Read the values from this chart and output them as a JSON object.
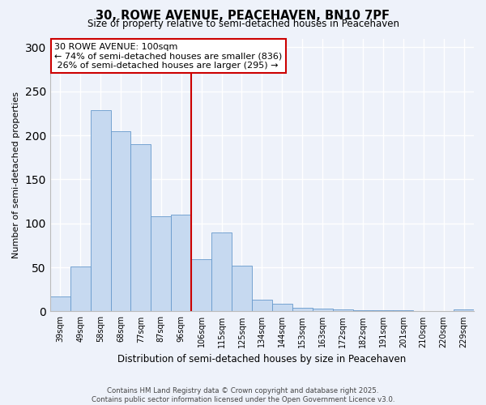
{
  "title": "30, ROWE AVENUE, PEACEHAVEN, BN10 7PF",
  "subtitle": "Size of property relative to semi-detached houses in Peacehaven",
  "xlabel": "Distribution of semi-detached houses by size in Peacehaven",
  "ylabel": "Number of semi-detached properties",
  "categories": [
    "39sqm",
    "49sqm",
    "58sqm",
    "68sqm",
    "77sqm",
    "87sqm",
    "96sqm",
    "106sqm",
    "115sqm",
    "125sqm",
    "134sqm",
    "144sqm",
    "153sqm",
    "163sqm",
    "172sqm",
    "182sqm",
    "191sqm",
    "201sqm",
    "210sqm",
    "220sqm",
    "229sqm"
  ],
  "values": [
    17,
    51,
    229,
    205,
    190,
    108,
    110,
    59,
    90,
    52,
    13,
    9,
    4,
    3,
    2,
    1,
    1,
    1,
    0,
    0,
    2
  ],
  "bar_color": "#c6d9f0",
  "bar_edge_color": "#6699cc",
  "property_line_x": 6.5,
  "pct_smaller": 74,
  "pct_smaller_n": 836,
  "pct_larger": 26,
  "pct_larger_n": 295,
  "vline_color": "#cc0000",
  "annotation_box_edge": "#cc0000",
  "ylim": [
    0,
    310
  ],
  "yticks": [
    0,
    50,
    100,
    150,
    200,
    250,
    300
  ],
  "footer_line1": "Contains HM Land Registry data © Crown copyright and database right 2025.",
  "footer_line2": "Contains public sector information licensed under the Open Government Licence v3.0.",
  "bg_color": "#eef2fa",
  "grid_color": "#ffffff"
}
